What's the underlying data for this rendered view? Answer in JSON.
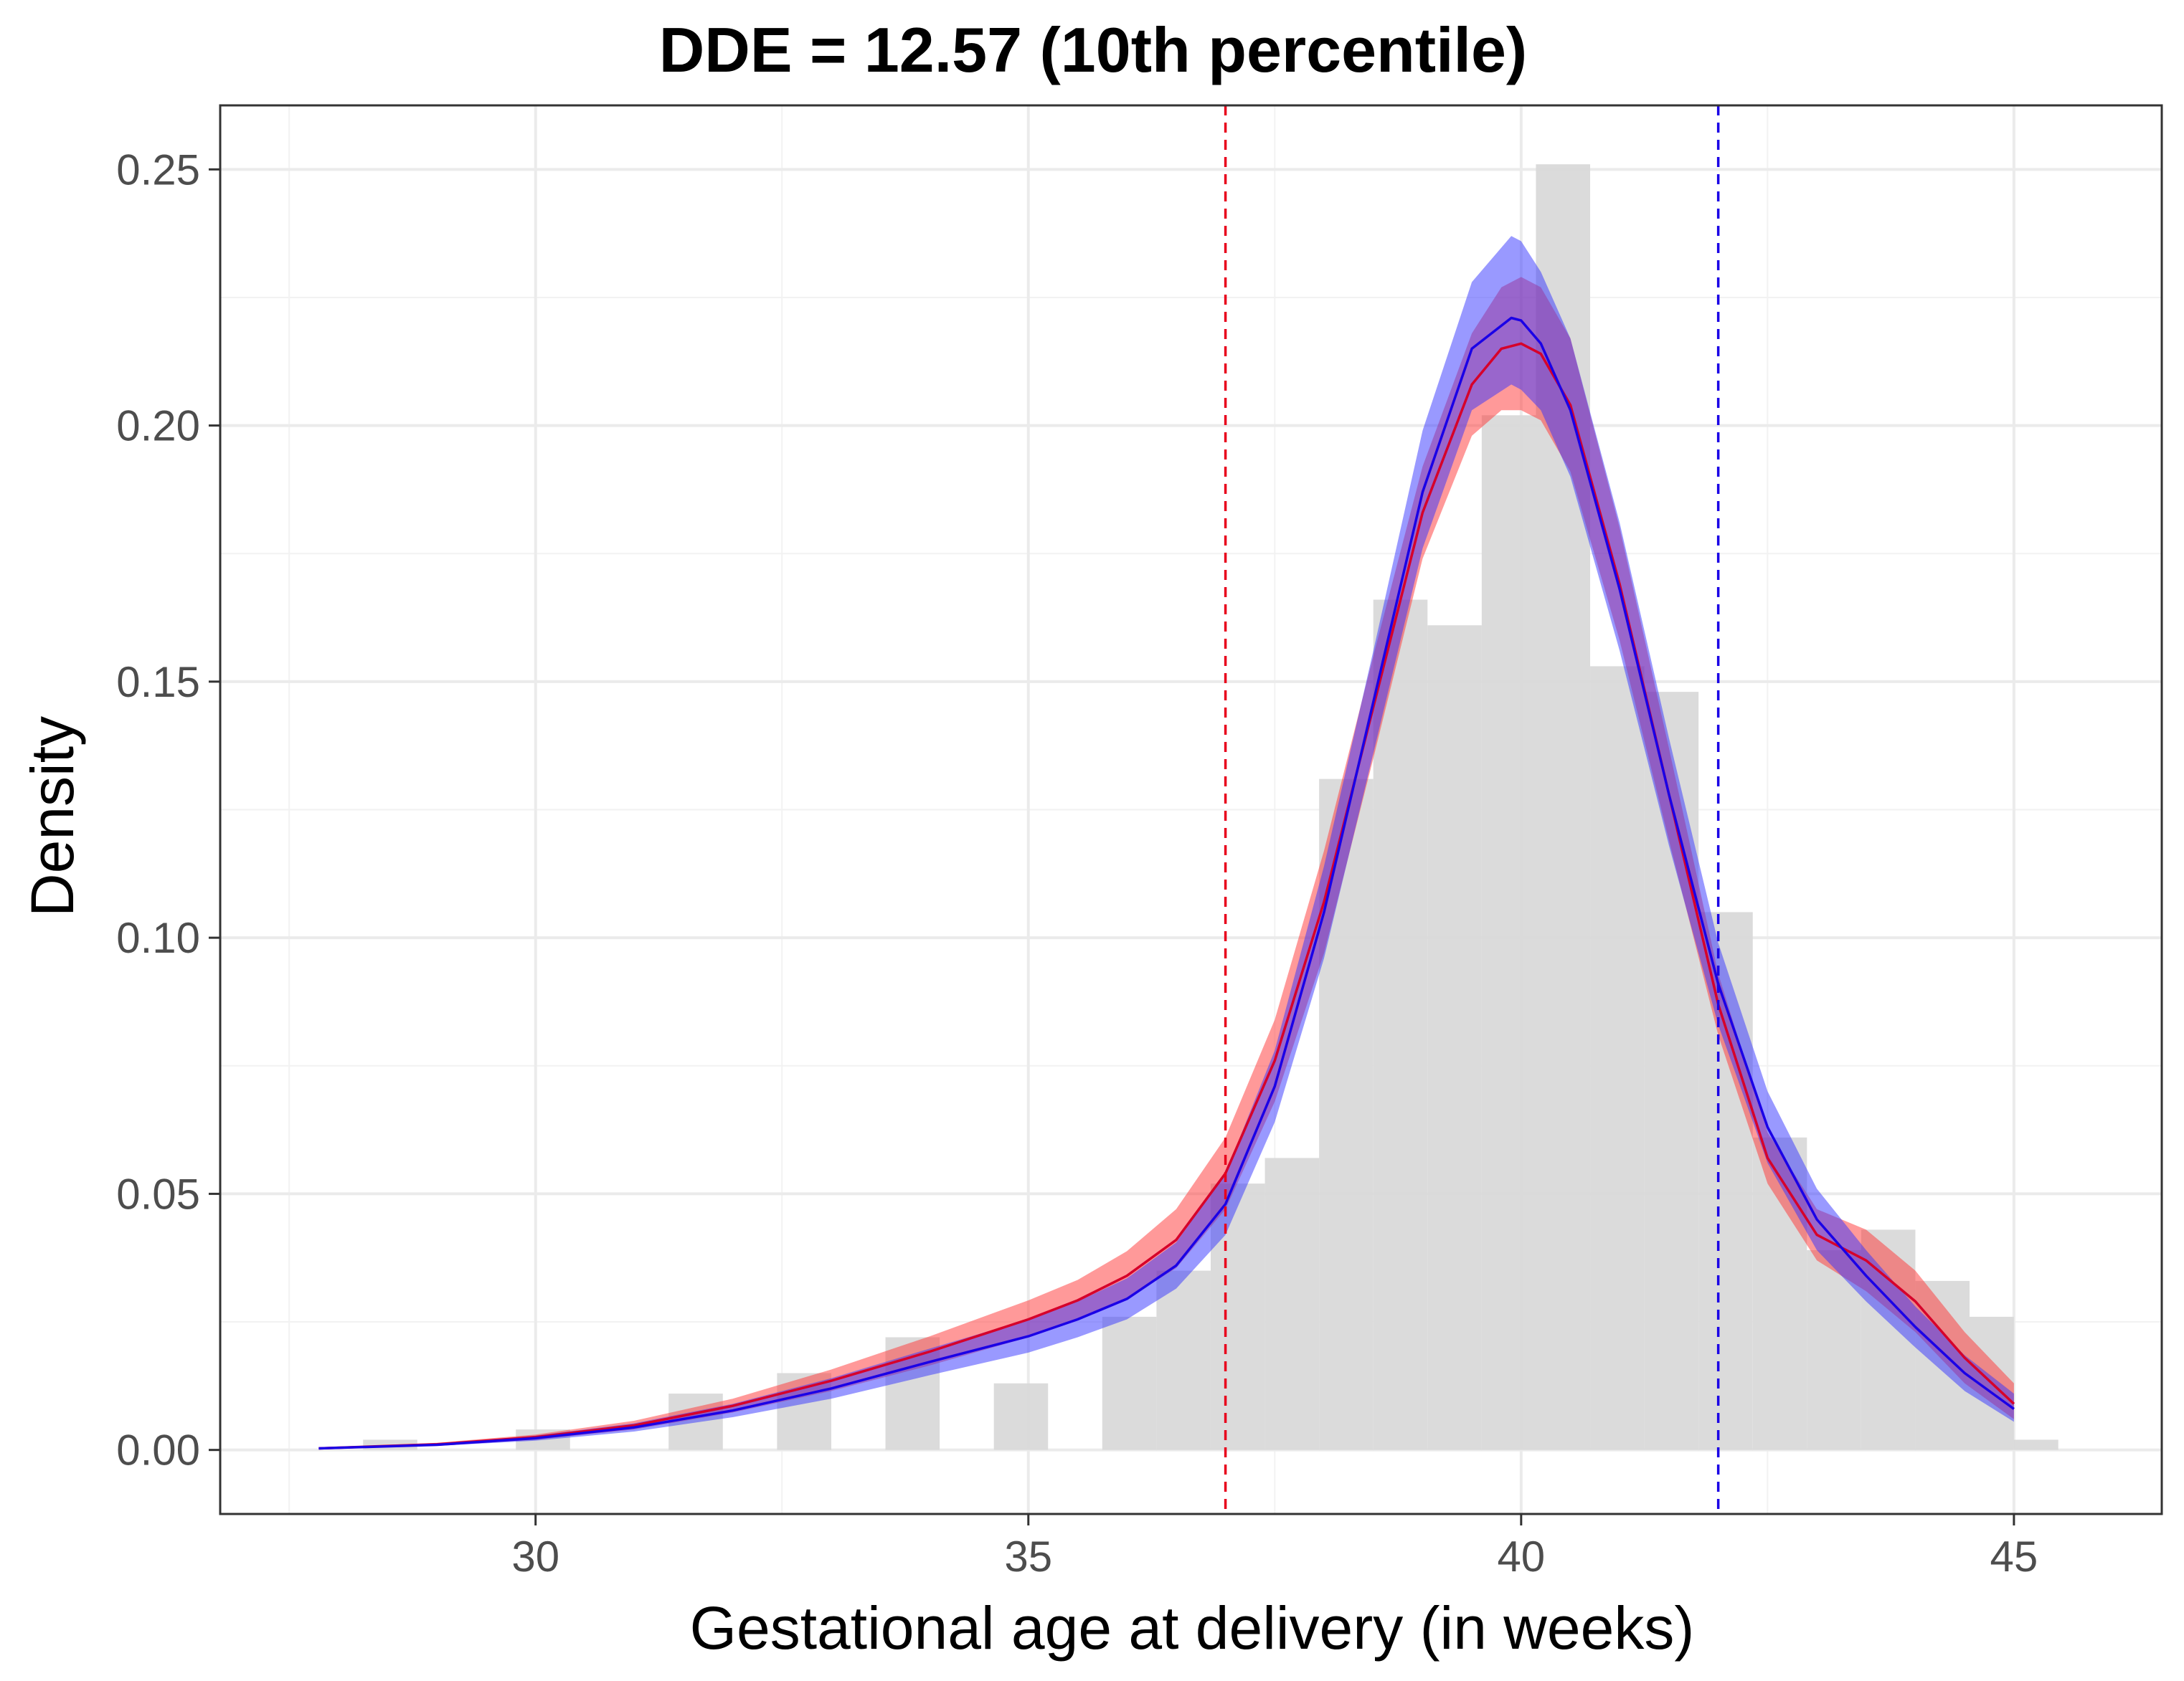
{
  "chart_data": {
    "type": "area",
    "title": "DDE = 12.57 (10th percentile)",
    "xlabel": "Gestational age at delivery (in weeks)",
    "ylabel": "Density",
    "xlim": [
      26.8,
      46.5
    ],
    "ylim": [
      -0.0125,
      0.2625
    ],
    "x_ticks": [
      30,
      35,
      40,
      45
    ],
    "x_tick_labels": [
      "30",
      "35",
      "40",
      "45"
    ],
    "y_ticks": [
      0,
      0.05,
      0.1,
      0.15,
      0.2,
      0.25
    ],
    "y_tick_labels": [
      "0.00",
      "0.05",
      "0.10",
      "0.15",
      "0.20",
      "0.25"
    ],
    "x_minor_ticks": [
      27.5,
      32.5,
      37.5,
      42.5
    ],
    "y_minor_ticks": [
      0.025,
      0.075,
      0.125,
      0.175,
      0.225
    ],
    "grid": true,
    "histogram": {
      "bin_width": 0.55,
      "color": "#d9d9d9",
      "bins": [
        {
          "x0": 28.25,
          "x1": 28.8,
          "h": 0.002
        },
        {
          "x0": 29.8,
          "x1": 30.35,
          "h": 0.004
        },
        {
          "x0": 31.35,
          "x1": 31.9,
          "h": 0.011
        },
        {
          "x0": 32.45,
          "x1": 33.0,
          "h": 0.015
        },
        {
          "x0": 33.55,
          "x1": 34.1,
          "h": 0.022
        },
        {
          "x0": 34.65,
          "x1": 35.2,
          "h": 0.013
        },
        {
          "x0": 35.75,
          "x1": 36.3,
          "h": 0.026
        },
        {
          "x0": 36.3,
          "x1": 36.85,
          "h": 0.035
        },
        {
          "x0": 36.85,
          "x1": 37.4,
          "h": 0.052
        },
        {
          "x0": 37.4,
          "x1": 37.95,
          "h": 0.057
        },
        {
          "x0": 37.95,
          "x1": 38.5,
          "h": 0.131
        },
        {
          "x0": 38.5,
          "x1": 39.05,
          "h": 0.166
        },
        {
          "x0": 39.05,
          "x1": 39.6,
          "h": 0.161
        },
        {
          "x0": 39.6,
          "x1": 40.15,
          "h": 0.202
        },
        {
          "x0": 40.15,
          "x1": 40.7,
          "h": 0.251
        },
        {
          "x0": 40.7,
          "x1": 41.25,
          "h": 0.153
        },
        {
          "x0": 41.25,
          "x1": 41.8,
          "h": 0.148
        },
        {
          "x0": 41.8,
          "x1": 42.35,
          "h": 0.105
        },
        {
          "x0": 42.35,
          "x1": 42.9,
          "h": 0.061
        },
        {
          "x0": 42.9,
          "x1": 43.45,
          "h": 0.039
        },
        {
          "x0": 43.45,
          "x1": 44.0,
          "h": 0.043
        },
        {
          "x0": 44.0,
          "x1": 44.55,
          "h": 0.033
        },
        {
          "x0": 44.55,
          "x1": 45.0,
          "h": 0.026
        },
        {
          "x0": 45.0,
          "x1": 45.45,
          "h": 0.002
        }
      ]
    },
    "series": [
      {
        "name": "red",
        "color": "#d6002a",
        "band_color": "#ff3333",
        "band_opacity": 0.5,
        "x": [
          27.8,
          29,
          30,
          31,
          32,
          33,
          34,
          35,
          35.5,
          36,
          36.5,
          37,
          37.5,
          38,
          38.5,
          39,
          39.5,
          39.8,
          40,
          40.2,
          40.5,
          41,
          41.5,
          42,
          42.5,
          43,
          43.5,
          44,
          44.5,
          45
        ],
        "mean": [
          0.0003,
          0.0011,
          0.0025,
          0.0048,
          0.0086,
          0.0135,
          0.0192,
          0.0255,
          0.0292,
          0.034,
          0.041,
          0.054,
          0.076,
          0.107,
          0.145,
          0.183,
          0.208,
          0.215,
          0.216,
          0.214,
          0.204,
          0.169,
          0.128,
          0.087,
          0.057,
          0.042,
          0.037,
          0.029,
          0.018,
          0.009
        ],
        "lower": [
          0.0002,
          0.0008,
          0.002,
          0.004,
          0.0073,
          0.0115,
          0.0165,
          0.022,
          0.0255,
          0.0295,
          0.0355,
          0.047,
          0.068,
          0.097,
          0.135,
          0.174,
          0.198,
          0.203,
          0.203,
          0.201,
          0.191,
          0.158,
          0.119,
          0.081,
          0.052,
          0.037,
          0.031,
          0.023,
          0.013,
          0.006
        ],
        "upper": [
          0.0004,
          0.0014,
          0.003,
          0.0057,
          0.01,
          0.0157,
          0.0222,
          0.0292,
          0.0332,
          0.0388,
          0.047,
          0.061,
          0.084,
          0.117,
          0.155,
          0.192,
          0.218,
          0.227,
          0.229,
          0.227,
          0.217,
          0.18,
          0.137,
          0.093,
          0.062,
          0.047,
          0.043,
          0.035,
          0.023,
          0.013
        ]
      },
      {
        "name": "blue",
        "color": "#1a00e6",
        "band_color": "#3333ff",
        "band_opacity": 0.5,
        "x": [
          27.8,
          29,
          30,
          31,
          32,
          33,
          34,
          35,
          35.5,
          36,
          36.5,
          37,
          37.5,
          38,
          38.5,
          39,
          39.5,
          39.9,
          40,
          40.2,
          40.5,
          41,
          41.5,
          42,
          42.5,
          43,
          43.5,
          44,
          44.5,
          45
        ],
        "mean": [
          0.0003,
          0.001,
          0.0023,
          0.0044,
          0.0077,
          0.012,
          0.0172,
          0.0222,
          0.0255,
          0.0295,
          0.036,
          0.048,
          0.071,
          0.105,
          0.146,
          0.187,
          0.215,
          0.221,
          0.2205,
          0.216,
          0.203,
          0.168,
          0.128,
          0.091,
          0.063,
          0.045,
          0.034,
          0.024,
          0.015,
          0.008
        ],
        "lower": [
          0.0002,
          0.0008,
          0.0018,
          0.0036,
          0.0064,
          0.01,
          0.0146,
          0.019,
          0.022,
          0.0255,
          0.0315,
          0.042,
          0.064,
          0.096,
          0.136,
          0.176,
          0.203,
          0.208,
          0.207,
          0.203,
          0.19,
          0.156,
          0.118,
          0.083,
          0.056,
          0.039,
          0.029,
          0.02,
          0.0115,
          0.0055
        ],
        "upper": [
          0.0004,
          0.0012,
          0.0028,
          0.0052,
          0.009,
          0.014,
          0.0198,
          0.0255,
          0.029,
          0.0335,
          0.0405,
          0.054,
          0.078,
          0.114,
          0.156,
          0.199,
          0.228,
          0.237,
          0.236,
          0.23,
          0.217,
          0.181,
          0.139,
          0.099,
          0.07,
          0.051,
          0.039,
          0.028,
          0.0185,
          0.011
        ]
      }
    ],
    "vlines": [
      {
        "name": "red-cutoff",
        "x": 37,
        "color": "#e8001c",
        "style": "dashed"
      },
      {
        "name": "blue-cutoff",
        "x": 42,
        "color": "#1a00e6",
        "style": "dashed"
      }
    ]
  }
}
